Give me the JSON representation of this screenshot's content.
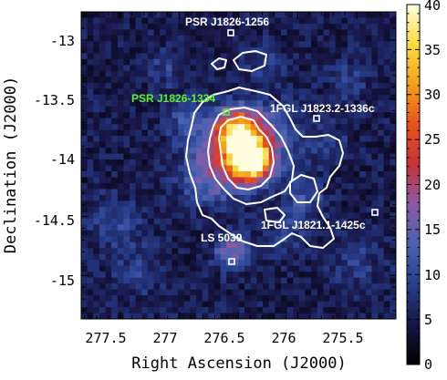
{
  "axes": {
    "xlabel": "Right Ascension (J2000)",
    "ylabel": "Declination (J2000)",
    "x_ticks": [
      "277.5",
      "277",
      "276.5",
      "276",
      "275.5"
    ],
    "x_tick_values": [
      277.5,
      277.0,
      276.5,
      276.0,
      275.5
    ],
    "y_ticks": [
      "-13",
      "-13.5",
      "-14",
      "-14.5",
      "-15"
    ],
    "y_tick_values": [
      -13.0,
      -13.5,
      -14.0,
      -14.5,
      -15.0
    ],
    "xlim": [
      277.83,
      275.17
    ],
    "ylim": [
      -15.37,
      -12.76
    ]
  },
  "colorbar": {
    "ticks": [
      "0",
      "5",
      "10",
      "15",
      "20",
      "25",
      "30",
      "35",
      "40"
    ],
    "tick_values": [
      0,
      5,
      10,
      15,
      20,
      25,
      30,
      35,
      40
    ],
    "range": [
      0,
      40
    ],
    "colors": [
      "#000000",
      "#171646",
      "#283e8c",
      "#4a62b0",
      "#8a5aa6",
      "#c8303a",
      "#e9531a",
      "#f5a018",
      "#f8dc3c",
      "#fffde0"
    ]
  },
  "sources": [
    {
      "label": "PSR J1826-1256",
      "ra": 276.53,
      "dec": -12.95,
      "color": "#ffffff"
    },
    {
      "label": "PSR J1826-1334",
      "ra": 276.53,
      "dec": -13.57,
      "color": "#5ef02a"
    },
    {
      "label": "1FGL J1823.2-1336c",
      "ra": 275.8,
      "dec": -13.62,
      "color": "#ffffff"
    },
    {
      "label": "1FGL J1821.1-1425c",
      "ra": 275.29,
      "dec": -14.43,
      "color": "#ffffff"
    },
    {
      "label": "LS 5039",
      "ra": 276.56,
      "dec": -14.83,
      "color": "#ffffff"
    }
  ],
  "chart_data": {
    "type": "heatmap",
    "xlabel": "Right Ascension (J2000)",
    "ylabel": "Declination (J2000)",
    "xlim": [
      277.83,
      275.17
    ],
    "ylim": [
      -15.37,
      -12.76
    ],
    "colorbar_range": [
      0,
      40
    ],
    "hotspots": [
      {
        "ra": 276.5,
        "dec": -13.78,
        "peak": 26,
        "sigma": 0.12
      },
      {
        "ra": 276.4,
        "dec": -14.03,
        "peak": 38,
        "sigma": 0.11
      },
      {
        "ra": 276.55,
        "dec": -13.95,
        "peak": 16,
        "sigma": 0.22
      },
      {
        "ra": 276.2,
        "dec": -13.8,
        "peak": 7,
        "sigma": 0.18
      },
      {
        "ra": 276.55,
        "dec": -14.8,
        "peak": 13,
        "sigma": 0.1
      },
      {
        "ra": 276.8,
        "dec": -14.2,
        "peak": 6,
        "sigma": 0.15
      },
      {
        "ra": 275.95,
        "dec": -14.35,
        "peak": 6,
        "sigma": 0.12
      },
      {
        "ra": 276.95,
        "dec": -13.7,
        "peak": 5,
        "sigma": 0.12
      },
      {
        "ra": 277.55,
        "dec": -14.55,
        "peak": 5,
        "sigma": 0.15
      },
      {
        "ra": 277.35,
        "dec": -14.95,
        "peak": 4,
        "sigma": 0.15
      },
      {
        "ra": 276.3,
        "dec": -13.2,
        "peak": 4,
        "sigma": 0.12
      },
      {
        "ra": 275.55,
        "dec": -13.35,
        "peak": 4,
        "sigma": 0.12
      },
      {
        "ra": 275.5,
        "dec": -14.9,
        "peak": 4,
        "sigma": 0.15
      },
      {
        "ra": 276.1,
        "dec": -14.65,
        "peak": 5,
        "sigma": 0.12
      },
      {
        "ra": 277.1,
        "dec": -13.25,
        "peak": 4,
        "sigma": 0.12
      },
      {
        "ra": 275.75,
        "dec": -13.9,
        "peak": 4,
        "sigma": 0.12
      }
    ],
    "background_level": 6,
    "contour_levels": 3
  }
}
